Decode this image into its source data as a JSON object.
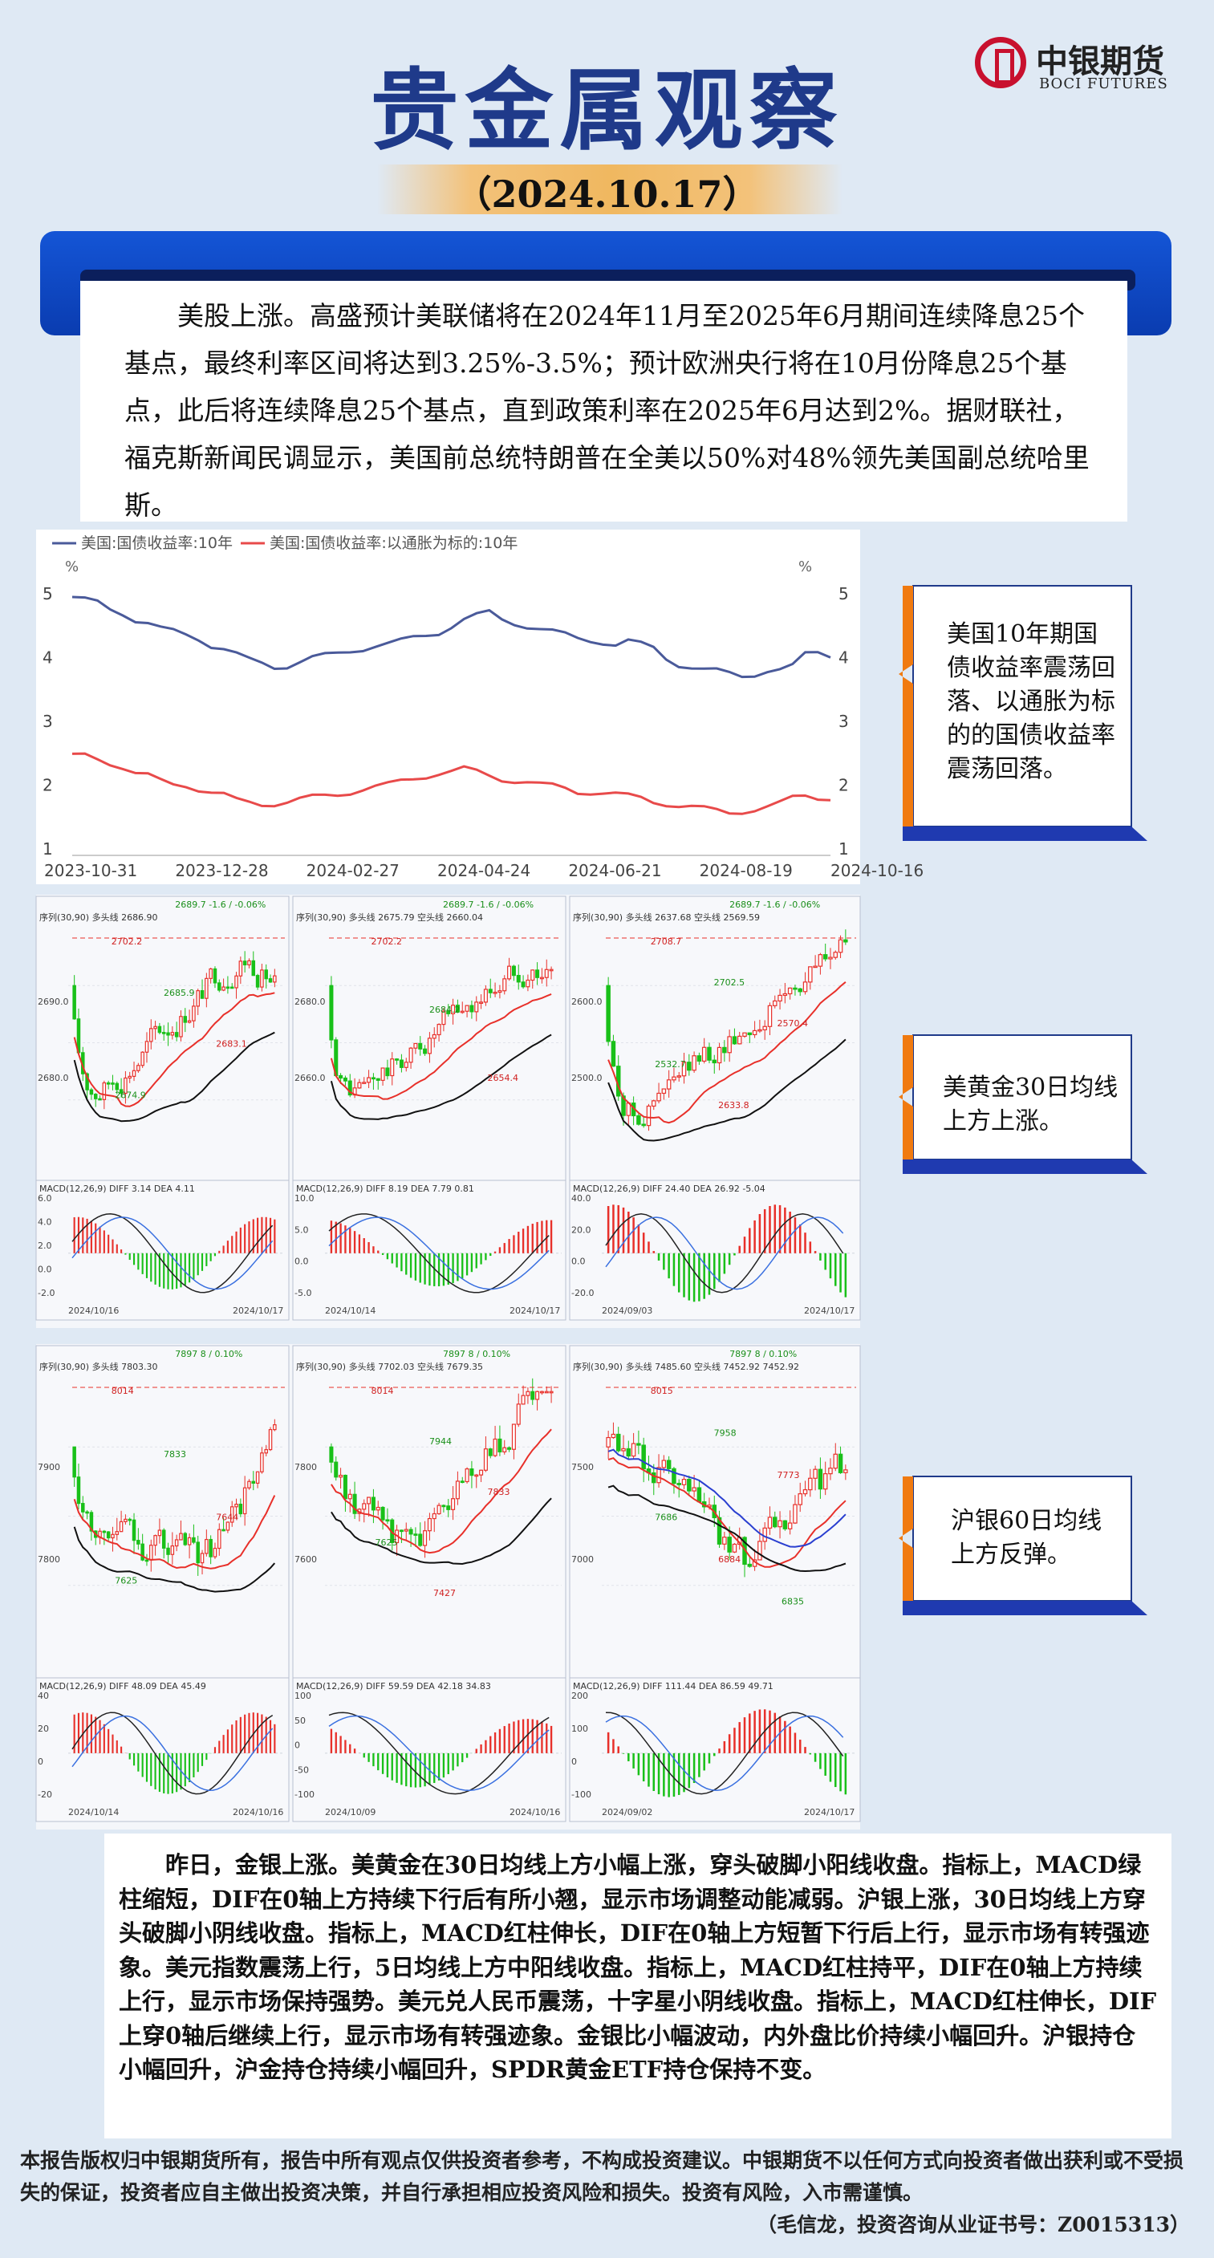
{
  "header": {
    "title": "贵金属观察",
    "date": "（2024.10.17）",
    "logo_cn": "中银期货",
    "logo_en": "BOCI FUTURES"
  },
  "intro": "美股上涨。高盛预计美联储将在2024年11月至2025年6月期间连续降息25个基点，最终利率区间将达到3.25%-3.5%；预计欧洲央行将在10月份降息25个基点，此后将连续降息25个基点，直到政策利率在2025年6月达到2%。据财联社，福克斯新闻民调显示，美国前总统特朗普在全美以50%对48%领先美国副总统哈里斯。",
  "chart_data": {
    "type": "line",
    "series": [
      {
        "name": "美国:国债收益率:10年",
        "color": "#4a5a9a",
        "values": [
          4.95,
          4.9,
          4.85,
          4.75,
          4.7,
          4.6,
          4.55,
          4.45,
          4.4,
          4.35,
          4.3,
          4.2,
          4.15,
          4.05,
          3.95,
          3.9,
          3.85,
          3.88,
          3.95,
          4.0,
          4.02,
          4.05,
          4.1,
          4.15,
          4.2,
          4.22,
          4.25,
          4.3,
          4.35,
          4.4,
          4.5,
          4.6,
          4.65,
          4.7,
          4.6,
          4.55,
          4.5,
          4.45,
          4.4,
          4.35,
          4.3,
          4.28,
          4.25,
          4.2,
          4.25,
          4.2,
          4.15,
          4.0,
          3.9,
          3.85,
          3.8,
          3.78,
          3.75,
          3.72,
          3.75,
          3.8,
          3.8,
          3.85,
          4.05,
          4.1,
          4.05
        ]
      },
      {
        "name": "美国:国债收益率:以通胀为标的:10年",
        "color": "#e84a4a",
        "values": [
          2.45,
          2.45,
          2.4,
          2.35,
          2.3,
          2.2,
          2.15,
          2.05,
          2.0,
          2.0,
          1.95,
          1.9,
          1.85,
          1.75,
          1.72,
          1.7,
          1.72,
          1.75,
          1.78,
          1.8,
          1.82,
          1.85,
          1.9,
          1.95,
          1.98,
          2.0,
          2.05,
          2.1,
          2.15,
          2.2,
          2.22,
          2.25,
          2.2,
          2.15,
          2.1,
          2.08,
          2.05,
          2.0,
          1.98,
          1.95,
          1.9,
          1.9,
          1.88,
          1.85,
          1.82,
          1.8,
          1.75,
          1.72,
          1.68,
          1.65,
          1.62,
          1.6,
          1.58,
          1.6,
          1.62,
          1.65,
          1.7,
          1.8,
          1.85,
          1.82,
          1.8
        ]
      }
    ],
    "x_ticks": [
      "2023-10-31",
      "2023-12-28",
      "2024-02-27",
      "2024-04-24",
      "2024-06-21",
      "2024-08-19",
      "2024-10-16"
    ],
    "y_ticks": [
      "5",
      "4",
      "3",
      "2",
      "1"
    ],
    "unit": "%",
    "ylim": [
      1,
      5
    ],
    "legend": "top-left"
  },
  "gold_charts": {
    "header_texts": [
      "2689.7  -1.6 / -0.06%",
      "2689.7  -1.6 / -0.06%",
      "2689.7  -1.6 / -0.06%"
    ],
    "panel1": {
      "ma_label": "序列(30,90) 多头线 2686.90",
      "prices": [
        "2702.2",
        "2685.9",
        "2683.1",
        "2674.9"
      ],
      "macd": "MACD(12,26,9) DIFF 3.14 DEA 4.11",
      "date_left": "2024/10/16",
      "date_right": "2024/10/17",
      "y_ticks": [
        "2690.0",
        "2680.0"
      ],
      "macd_ticks": [
        "6.0",
        "4.0",
        "2.0",
        "0.0",
        "-2.0"
      ]
    },
    "panel2": {
      "ma_label": "序列(30,90) 多头线 2675.79 空头线 2660.04",
      "prices": [
        "2702.2",
        "2684.2",
        "2654.4"
      ],
      "macd": "MACD(12,26,9) DIFF 8.19 DEA 7.79 0.81",
      "date_left": "2024/10/14",
      "date_right": "2024/10/17",
      "y_ticks": [
        "2680.0",
        "2660.0"
      ],
      "macd_ticks": [
        "10.0",
        "5.0",
        "0.0",
        "-5.0"
      ]
    },
    "panel3": {
      "ma_label": "序列(30,90) 多头线 2637.68 空头线 2569.59",
      "prices": [
        "2708.7",
        "2702.5",
        "2570.4",
        "2532.7",
        "2633.8"
      ],
      "macd": "MACD(12,26,9) DIFF 24.40 DEA 26.92 -5.04",
      "date_left": "2024/09/03",
      "date_right": "2024/10/17",
      "y_ticks": [
        "2600.0",
        "2500.0"
      ],
      "macd_ticks": [
        "40.0",
        "20.0",
        "0.0",
        "-20.0"
      ]
    }
  },
  "silver_charts": {
    "header_texts": [
      "7897  8 / 0.10%",
      "7897  8 / 0.10%",
      "7897  8 / 0.10%"
    ],
    "panel1": {
      "ma_label": "序列(30,90) 多头线 7803.30",
      "prices": [
        "8014",
        "7833",
        "7644",
        "7625"
      ],
      "macd": "MACD(12,26,9) DIFF 48.09 DEA 45.49",
      "date_left": "2024/10/14",
      "date_right": "2024/10/16",
      "y_ticks": [
        "7900",
        "7800"
      ],
      "macd_ticks": [
        "40",
        "20",
        "0",
        "-20"
      ]
    },
    "panel2": {
      "ma_label": "序列(30,90) 多头线 7702.03 空头线 7679.35",
      "prices": [
        "8014",
        "7944",
        "7833",
        "7625",
        "7427"
      ],
      "macd": "MACD(12,26,9) DIFF 59.59 DEA 42.18 34.83",
      "date_left": "2024/10/09",
      "date_right": "2024/10/16",
      "y_ticks": [
        "7800",
        "7600"
      ],
      "macd_ticks": [
        "100",
        "50",
        "0",
        "-50",
        "-100"
      ]
    },
    "panel3": {
      "ma_label": "序列(30,90) 多头线 7485.60 空头线 7452.92 7452.92",
      "prices": [
        "8015",
        "7958",
        "7773",
        "7686",
        "6884",
        "6835"
      ],
      "macd": "MACD(12,26,9) DIFF 111.44 DEA 86.59 49.71",
      "date_left": "2024/09/02",
      "date_right": "2024/10/17",
      "y_ticks": [
        "7500",
        "7000"
      ],
      "macd_ticks": [
        "200",
        "100",
        "0",
        "-100"
      ]
    }
  },
  "callouts": [
    "美国10年期国债收益率震荡回落、以通胀为标的的国债收益率震荡回落。",
    "美黄金30日均线上方上涨。",
    "沪银60日均线上方反弹。"
  ],
  "bottom_text": "昨日，金银上涨。美黄金在30日均线上方小幅上涨，穿头破脚小阳线收盘。指标上，MACD绿柱缩短，DIF在0轴上方持续下行后有所小翘，显示市场调整动能减弱。沪银上涨，30日均线上方穿头破脚小阴线收盘。指标上，MACD红柱伸长，DIF在0轴上方短暂下行后上行，显示市场有转强迹象。美元指数震荡上行，5日均线上方中阳线收盘。指标上，MACD红柱持平，DIF在0轴上方持续上行，显示市场保持强势。美元兑人民币震荡，十字星小阴线收盘。指标上，MACD红柱伸长，DIF上穿0轴后继续上行，显示市场有转强迹象。金银比小幅波动，内外盘比价持续小幅回升。沪银持仓小幅回升，沪金持仓持续小幅回升，SPDR黄金ETF持仓保持不变。",
  "footer": "本报告版权归中银期货所有，报告中所有观点仅供投资者参考，不构成投资建议。中银期货不以任何方式向投资者做出获利或不受损失的保证，投资者应自主做出投资决策，并自行承担相应投资风险和损失。投资有风险，入市需谨慎。",
  "footer_sign": "（毛信龙，投资咨询从业证书号：Z0015313）"
}
